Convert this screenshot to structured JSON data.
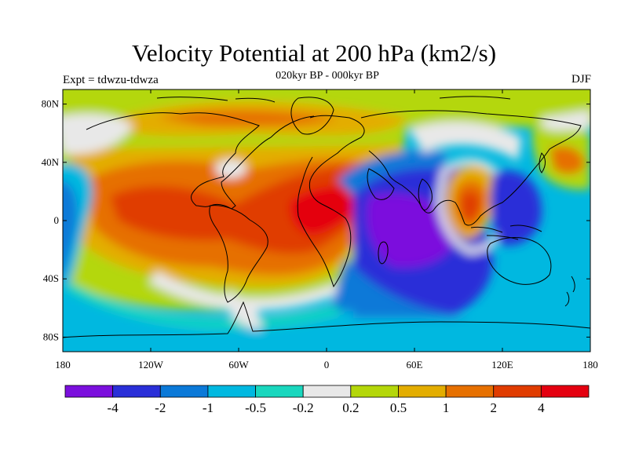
{
  "title": "Velocity Potential at 200 hPa (km2/s)",
  "subtitle": "020kyr BP - 000kyr BP",
  "left_label": "Expt = tdwzu-tdwza",
  "right_label": "DJF",
  "map": {
    "lon_range": [
      -180,
      180
    ],
    "lat_range": [
      -90,
      90
    ],
    "lat_ticks": [
      {
        "value": 80,
        "label": "80N"
      },
      {
        "value": 40,
        "label": "40N"
      },
      {
        "value": 0,
        "label": "0"
      },
      {
        "value": -40,
        "label": "40S"
      },
      {
        "value": -80,
        "label": "80S"
      }
    ],
    "lon_ticks": [
      {
        "value": -180,
        "label": "180"
      },
      {
        "value": -120,
        "label": "120W"
      },
      {
        "value": -60,
        "label": "60W"
      },
      {
        "value": 0,
        "label": "0"
      },
      {
        "value": 60,
        "label": "60E"
      },
      {
        "value": 120,
        "label": "120E"
      },
      {
        "value": 180,
        "label": "180"
      }
    ]
  },
  "colorbar": {
    "colors": [
      "#7b0fdd",
      "#2a2fd8",
      "#0b79d8",
      "#00b8e0",
      "#19d7be",
      "#e8e8e8",
      "#b4d70a",
      "#e3ad00",
      "#e67000",
      "#e03c00",
      "#e40010"
    ],
    "labels": [
      "-4",
      "-2",
      "-1",
      "-0.5",
      "-0.2",
      "0.2",
      "0.5",
      "1",
      "2",
      "4"
    ]
  }
}
